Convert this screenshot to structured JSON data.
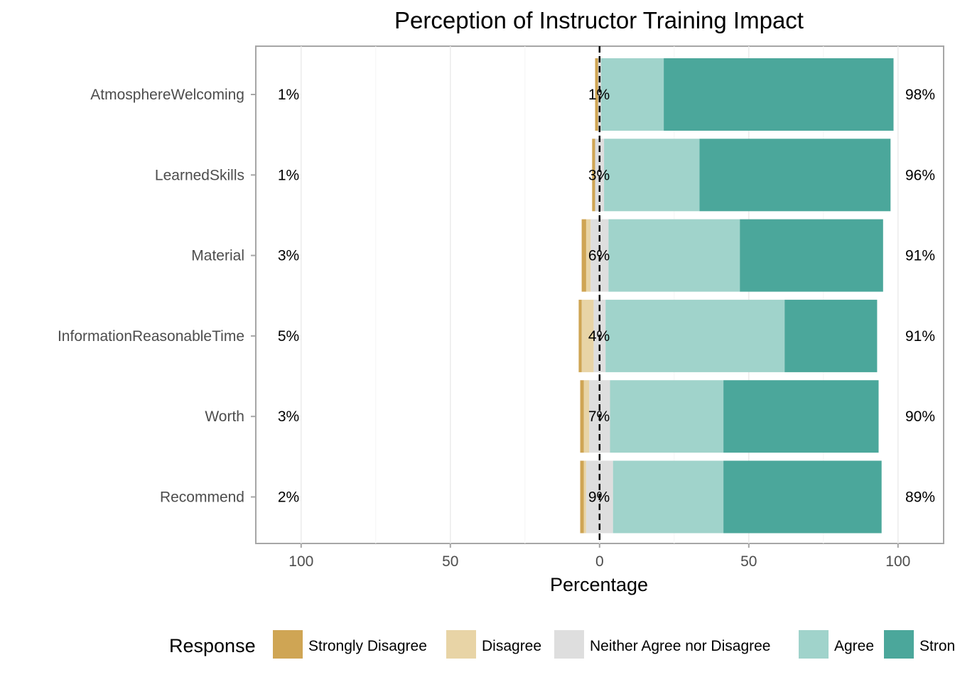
{
  "chart_data": {
    "type": "bar",
    "orientation": "horizontal",
    "stacking": "diverging",
    "title": "Perception of Instructor Training Impact",
    "xlabel": "Percentage",
    "ylabel": "",
    "xlim": [
      -100,
      100
    ],
    "x_ticks": [
      {
        "value": -100,
        "label": "100"
      },
      {
        "value": -50,
        "label": "50"
      },
      {
        "value": 0,
        "label": "0"
      },
      {
        "value": 50,
        "label": "50"
      },
      {
        "value": 100,
        "label": "100"
      }
    ],
    "grid": true,
    "categories": [
      "AtmosphereWelcoming",
      "LearnedSkills",
      "Material",
      "InformationReasonableTime",
      "Worth",
      "Recommend"
    ],
    "series": [
      {
        "name": "Strongly Disagree",
        "color": "#CFA554",
        "values": [
          1,
          1,
          1.5,
          1,
          1.2,
          1.2
        ]
      },
      {
        "name": "Disagree",
        "color": "#E8D4A6",
        "values": [
          0,
          0,
          1.5,
          4,
          1.8,
          0.8
        ]
      },
      {
        "name": "Neither Agree nor Disagree",
        "color": "#DEDEDE",
        "values": [
          1,
          3,
          6,
          4,
          7,
          9
        ]
      },
      {
        "name": "Agree",
        "color": "#A0D3CB",
        "values": [
          21,
          32,
          44,
          60,
          38,
          37
        ]
      },
      {
        "name": "Strongly Agree",
        "color": "#4BA79B",
        "values": [
          77,
          64,
          48,
          31,
          52,
          53
        ]
      }
    ],
    "left_labels": [
      "1%",
      "1%",
      "3%",
      "5%",
      "3%",
      "2%"
    ],
    "center_labels": [
      "1%",
      "3%",
      "6%",
      "4%",
      "7%",
      "9%"
    ],
    "right_labels": [
      "98%",
      "96%",
      "91%",
      "91%",
      "90%",
      "89%"
    ],
    "legend": {
      "title": "Response",
      "position": "bottom"
    }
  }
}
